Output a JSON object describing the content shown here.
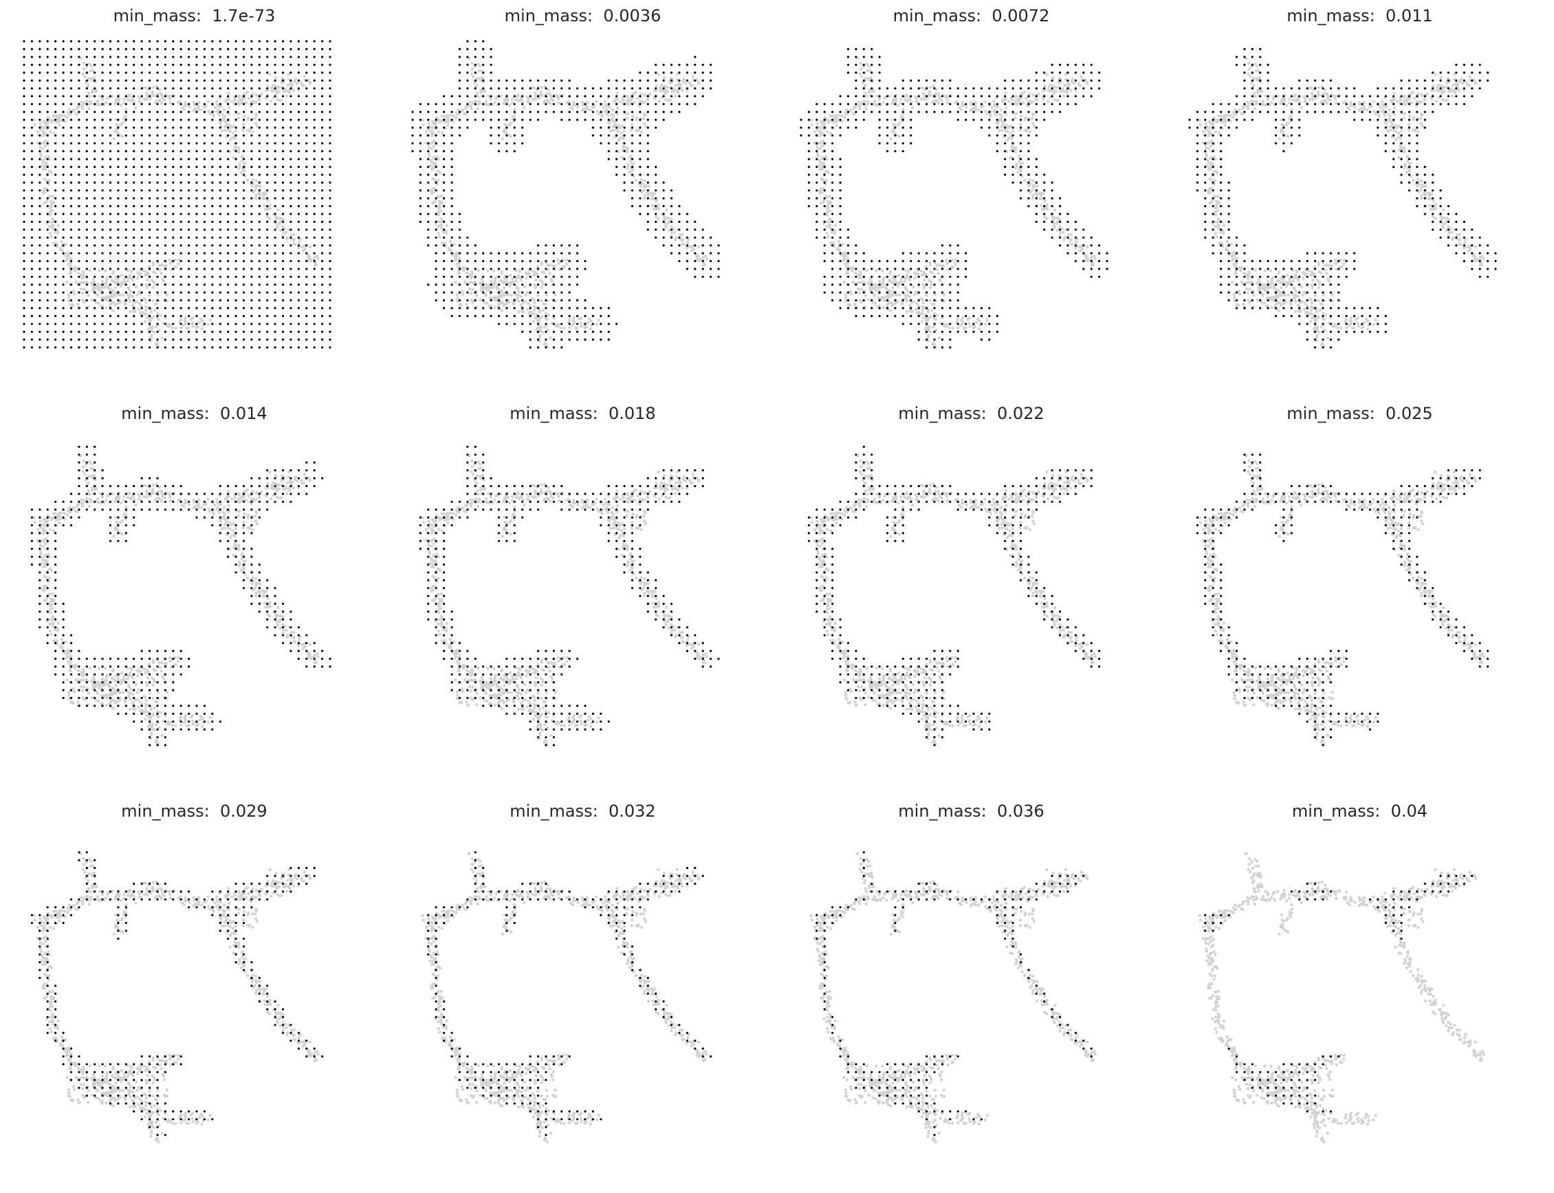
{
  "figure": {
    "background": "#ffffff",
    "colors": {
      "embedding": "#d3d3d3",
      "grid_points": "#000000",
      "title_text": "#262626"
    }
  },
  "chart_data": [
    {
      "type": "scatter",
      "title_prefix": "min_mass:",
      "title_value": "1.7e-73",
      "min_mass": 1.7e-73,
      "grid_points_shown": "full grid",
      "grid": false
    },
    {
      "type": "scatter",
      "title_prefix": "min_mass:",
      "title_value": "0.0036",
      "min_mass": 0.0036,
      "grid_points_shown": "dense along trajectory",
      "grid": false
    },
    {
      "type": "scatter",
      "title_prefix": "min_mass:",
      "title_value": "0.0072",
      "min_mass": 0.0072,
      "grid_points_shown": "dense along trajectory",
      "grid": false
    },
    {
      "type": "scatter",
      "title_prefix": "min_mass:",
      "title_value": "0.011",
      "min_mass": 0.011,
      "grid_points_shown": "along trajectory",
      "grid": false
    },
    {
      "type": "scatter",
      "title_prefix": "min_mass:",
      "title_value": "0.014",
      "min_mass": 0.014,
      "grid_points_shown": "along trajectory",
      "grid": false
    },
    {
      "type": "scatter",
      "title_prefix": "min_mass:",
      "title_value": "0.018",
      "min_mass": 0.018,
      "grid_points_shown": "along trajectory",
      "grid": false
    },
    {
      "type": "scatter",
      "title_prefix": "min_mass:",
      "title_value": "0.022",
      "min_mass": 0.022,
      "grid_points_shown": "sparser",
      "grid": false
    },
    {
      "type": "scatter",
      "title_prefix": "min_mass:",
      "title_value": "0.025",
      "min_mass": 0.025,
      "grid_points_shown": "sparser",
      "grid": false
    },
    {
      "type": "scatter",
      "title_prefix": "min_mass:",
      "title_value": "0.029",
      "min_mass": 0.029,
      "grid_points_shown": "dense regions only",
      "grid": false
    },
    {
      "type": "scatter",
      "title_prefix": "min_mass:",
      "title_value": "0.032",
      "min_mass": 0.032,
      "grid_points_shown": "dense regions only",
      "grid": false
    },
    {
      "type": "scatter",
      "title_prefix": "min_mass:",
      "title_value": "0.036",
      "min_mass": 0.036,
      "grid_points_shown": "few",
      "grid": false
    },
    {
      "type": "scatter",
      "title_prefix": "min_mass:",
      "title_value": "0.04",
      "min_mass": 0.04,
      "grid_points_shown": "fewest",
      "grid": false
    }
  ]
}
